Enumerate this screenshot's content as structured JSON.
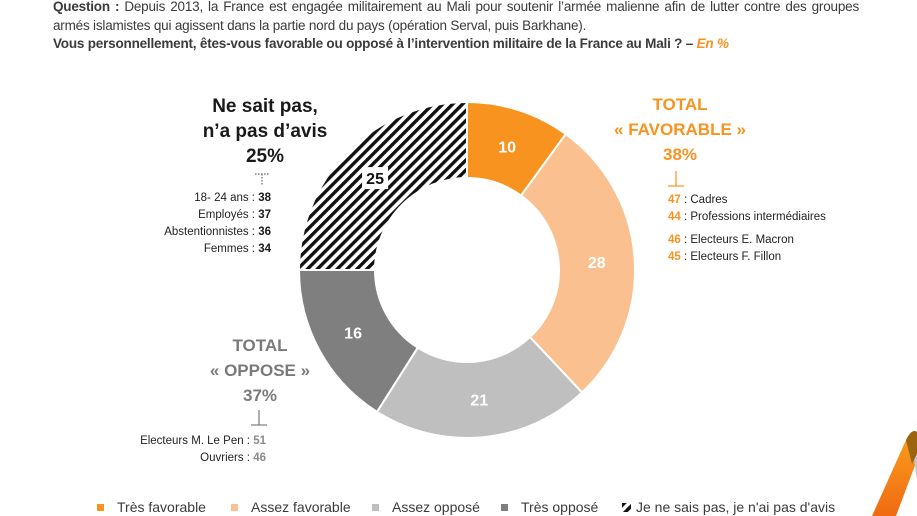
{
  "question": {
    "label": "Question :",
    "text": " Depuis 2013, la France est engagée militairement au Mali pour soutenir l’armée malienne afin de lutter contre des groupes armés islamistes qui agissent dans la partie nord du pays (opération Serval, puis Barkhane).",
    "subquestion": "Vous personnellement, êtes-vous favorable ou opposé à l’intervention militaire de la France au Mali ? – ",
    "unit": "En %"
  },
  "annotations": {
    "nsp": {
      "line1": "Ne sait pas,",
      "line2": "n’a pas d’avis",
      "total": "25%",
      "items": [
        {
          "label": "18- 24 ans : ",
          "value": "38"
        },
        {
          "label": "Employés : ",
          "value": "37"
        },
        {
          "label": "Abstentionnistes : ",
          "value": "36"
        },
        {
          "label": "Femmes : ",
          "value": "34"
        }
      ]
    },
    "favorable": {
      "line1": "TOTAL",
      "line2": "« FAVORABLE »",
      "total": "38%",
      "items": [
        {
          "value": "47",
          "label": " : Cadres"
        },
        {
          "value": "44",
          "label": " : Professions intermédiaires"
        },
        {
          "value": "46",
          "label": " : Electeurs E. Macron"
        },
        {
          "value": "45",
          "label": " : Electeurs F. Fillon"
        }
      ]
    },
    "oppose": {
      "line1": "TOTAL",
      "line2": "« OPPOSE »",
      "total": "37%",
      "items": [
        {
          "label": "Electeurs M. Le Pen : ",
          "value": "51"
        },
        {
          "label": "Ouvriers : ",
          "value": "46"
        }
      ]
    }
  },
  "chart_data": {
    "type": "pie",
    "subtype": "donut",
    "title": "Vous personnellement, êtes-vous favorable ou opposé à l’intervention militaire de la France au Mali ? – En %",
    "categories": [
      "Très favorable",
      "Assez favorable",
      "Assez opposé",
      "Très opposé",
      "Je ne sais pas, je n'ai pas d'avis"
    ],
    "values": [
      10,
      28,
      21,
      16,
      25
    ],
    "data_labels": [
      "10",
      "28",
      "21",
      "16",
      "25"
    ],
    "colors": [
      "#F7931E",
      "#FAC08F",
      "#BFBFBF",
      "#7F7F7F",
      "hatched-black"
    ],
    "start": "top",
    "direction": "clockwise",
    "legend_position": "bottom",
    "legend": [
      "Très favorable",
      "Assez favorable",
      "Assez opposé",
      "Très opposé",
      "Je ne sais pas, je n'ai pas d'avis"
    ]
  },
  "colors": {
    "accent": "#F7931E",
    "grey_text": "#7A7A7A"
  }
}
